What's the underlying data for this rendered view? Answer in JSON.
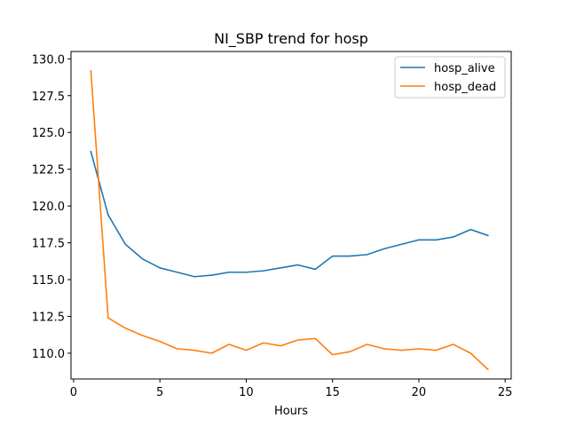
{
  "chart_data": {
    "type": "line",
    "title": "NI_SBP trend for hosp",
    "xlabel": "Hours",
    "ylabel": "",
    "xlim": [
      -0.15,
      25.35
    ],
    "ylim": [
      108.25,
      130.5
    ],
    "xticks": [
      0,
      5,
      10,
      15,
      20,
      25
    ],
    "yticks": [
      110.0,
      112.5,
      115.0,
      117.5,
      120.0,
      122.5,
      125.0,
      127.5,
      130.0
    ],
    "grid": false,
    "legend_position": "top-right",
    "x": [
      1,
      2,
      3,
      4,
      5,
      6,
      7,
      8,
      9,
      10,
      11,
      12,
      13,
      14,
      15,
      16,
      17,
      18,
      19,
      20,
      21,
      22,
      23,
      24
    ],
    "series": [
      {
        "name": "hosp_alive",
        "color": "#1f77b4",
        "values": [
          123.7,
          119.4,
          117.4,
          116.4,
          115.8,
          115.5,
          115.2,
          115.3,
          115.5,
          115.5,
          115.6,
          115.8,
          116.0,
          115.7,
          116.6,
          116.6,
          116.7,
          117.1,
          117.4,
          117.7,
          117.7,
          117.9,
          118.4,
          118.0
        ]
      },
      {
        "name": "hosp_dead",
        "color": "#ff7f0e",
        "values": [
          129.2,
          112.4,
          111.7,
          111.2,
          110.8,
          110.3,
          110.2,
          110.0,
          110.6,
          110.2,
          110.7,
          110.5,
          110.9,
          111.0,
          109.9,
          110.1,
          110.6,
          110.3,
          110.2,
          110.3,
          110.2,
          110.6,
          110.0,
          108.9
        ]
      }
    ]
  }
}
